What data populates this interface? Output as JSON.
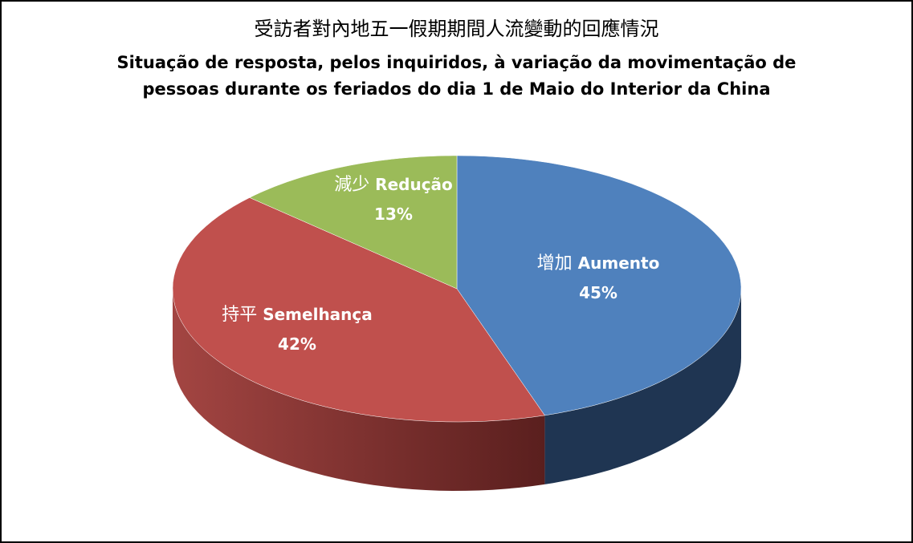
{
  "chart_data": {
    "type": "pie",
    "title": "受訪者對內地五一假期期間人流變動的回應情況",
    "subtitle": "Situação de resposta, pelos inquiridos, à variação da movimentação de pessoas durante os feriados do dia 1 de Maio do Interior da China",
    "style": "3d",
    "slices": [
      {
        "label_zh": "增加",
        "label_pt": "Aumento",
        "value": 45,
        "value_label": "45%",
        "color": "#4f81bd",
        "side_color": "#1f3552"
      },
      {
        "label_zh": "持平",
        "label_pt": "Semelhança",
        "value": 42,
        "value_label": "42%",
        "color": "#c0504d",
        "side_color": "#8c3a38"
      },
      {
        "label_zh": "減少",
        "label_pt": "Redução",
        "value": 13,
        "value_label": "13%",
        "color": "#9bbb59",
        "side_color": "#6b8a3a"
      }
    ],
    "legend": "none"
  }
}
